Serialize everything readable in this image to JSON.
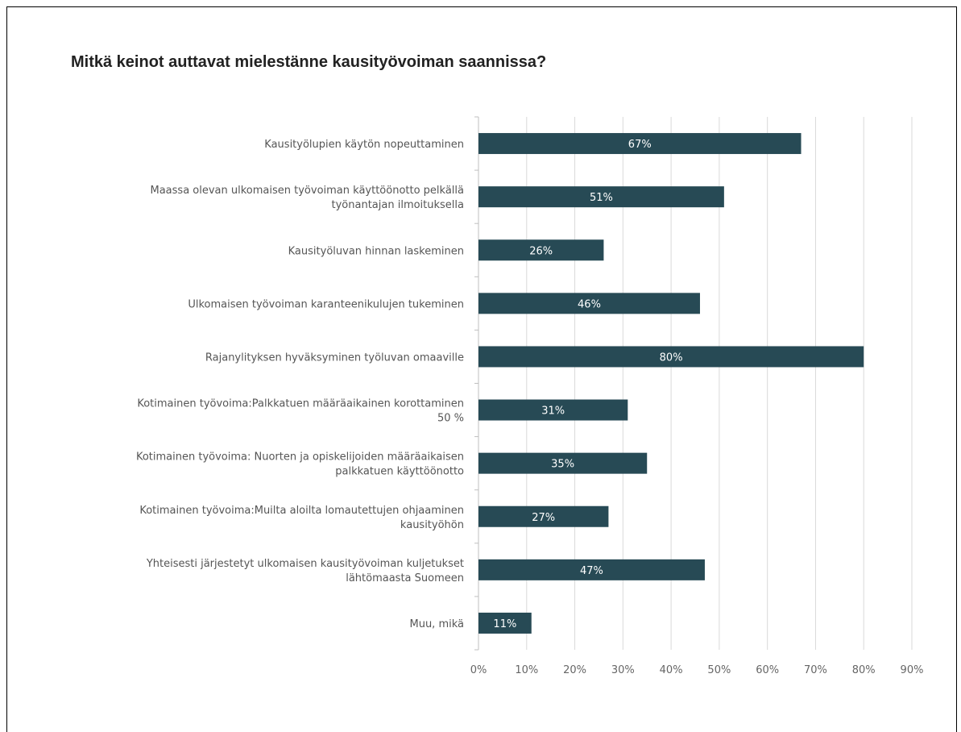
{
  "chart_data": {
    "type": "bar",
    "orientation": "horizontal",
    "title": "Mitkä keinot auttavat mielestänne kausityövoiman saannissa?",
    "categories": [
      [
        "Kausityölupien käytön nopeuttaminen"
      ],
      [
        "Maassa olevan ulkomaisen työvoiman käyttöönotto pelkällä",
        "työnantajan ilmoituksella"
      ],
      [
        "Kausityöluvan hinnan laskeminen"
      ],
      [
        "Ulkomaisen työvoiman karanteenikulujen tukeminen"
      ],
      [
        "Rajanylityksen hyväksyminen työluvan omaaville"
      ],
      [
        "Kotimainen työvoima:Palkkatuen määräaikainen korottaminen",
        "50 %"
      ],
      [
        "Kotimainen työvoima: Nuorten ja opiskelijoiden määräaikaisen",
        "palkkatuen käyttöönotto"
      ],
      [
        "Kotimainen työvoima:Muilta aloilta lomautettujen ohjaaminen",
        "kausityöhön"
      ],
      [
        "Yhteisesti järjestetyt ulkomaisen kausityövoiman kuljetukset",
        "lähtömaasta Suomeen"
      ],
      [
        "Muu, mikä"
      ]
    ],
    "values": [
      67,
      51,
      26,
      46,
      80,
      31,
      35,
      27,
      47,
      11
    ],
    "data_labels": [
      "67%",
      "51%",
      "26%",
      "46%",
      "80%",
      "31%",
      "35%",
      "27%",
      "47%",
      "11%"
    ],
    "xlim": [
      0,
      90
    ],
    "xticks": [
      0,
      10,
      20,
      30,
      40,
      50,
      60,
      70,
      80,
      90
    ],
    "xtick_labels": [
      "0%",
      "10%",
      "20%",
      "30%",
      "40%",
      "50%",
      "60%",
      "70%",
      "80%",
      "90%"
    ],
    "grid": true,
    "legend": "none",
    "bar_color": "#274a55",
    "label_color": "#ffffff",
    "grid_color": "#d9d9d9"
  }
}
